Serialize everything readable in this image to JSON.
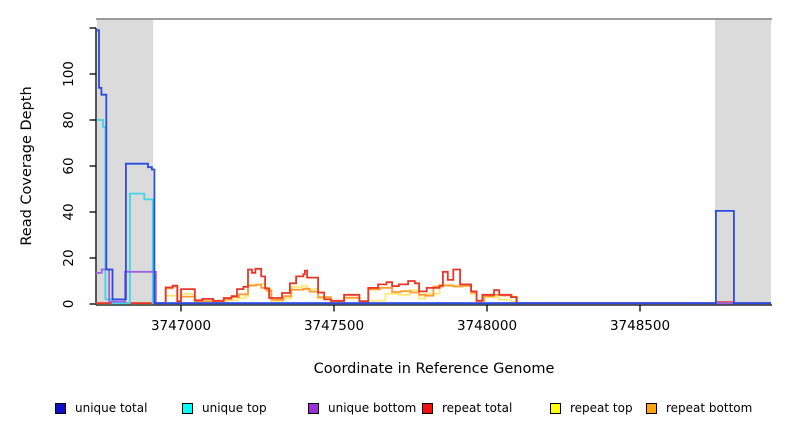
{
  "chart_data": {
    "type": "line",
    "step": true,
    "title": "",
    "xlabel": "Coordinate in Reference Genome",
    "ylabel": "Read Coverage Depth",
    "xlim": [
      3746722,
      3748928
    ],
    "ylim": [
      0,
      124
    ],
    "grid": false,
    "legend_position": "bottom",
    "x_ticks": [
      {
        "v": 3747000,
        "label": "3747000"
      },
      {
        "v": 3747500,
        "label": "3747500"
      },
      {
        "v": 3748000,
        "label": "3748000"
      },
      {
        "v": 3748500,
        "label": "3748500"
      }
    ],
    "y_ticks": [
      {
        "v": 0,
        "label": "0"
      },
      {
        "v": 20,
        "label": "20"
      },
      {
        "v": 40,
        "label": "40"
      },
      {
        "v": 60,
        "label": "60"
      },
      {
        "v": 80,
        "label": "80"
      },
      {
        "v": 100,
        "label": "100"
      },
      {
        "v": 120,
        "label": ""
      }
    ],
    "highlight_regions": [
      {
        "x0": 3746725,
        "x1": 3746909,
        "color": "#dbdbdb"
      },
      {
        "x0": 3748745,
        "x1": 3748928,
        "color": "#dbdbdb"
      }
    ],
    "frame": {
      "top_border_color": "#8f8f8f",
      "axis_color": "#000000"
    },
    "series": [
      {
        "name": "unique total",
        "color": "#2b4be0",
        "z": 6,
        "points": [
          [
            3746725,
            119
          ],
          [
            3746732,
            94
          ],
          [
            3746740,
            91
          ],
          [
            3746756,
            15
          ],
          [
            3746776,
            2
          ],
          [
            3746820,
            61
          ],
          [
            3746892,
            59.5
          ],
          [
            3746905,
            58.5
          ],
          [
            3746913,
            0.4
          ],
          [
            3748748,
            40.5
          ],
          [
            3748807,
            0.4
          ],
          [
            3748928,
            0.4
          ]
        ]
      },
      {
        "name": "unique top",
        "color": "#3fd6ea",
        "z": 4,
        "points": [
          [
            3746725,
            80
          ],
          [
            3746745,
            77
          ],
          [
            3746753,
            2
          ],
          [
            3746776,
            0.3
          ],
          [
            3746833,
            48
          ],
          [
            3746880,
            45.5
          ],
          [
            3746908,
            0.3
          ],
          [
            3748928,
            0.3
          ]
        ]
      },
      {
        "name": "unique bottom",
        "color": "#9c64e2",
        "z": 5,
        "points": [
          [
            3746722,
            13.5
          ],
          [
            3746741,
            15
          ],
          [
            3746765,
            1
          ],
          [
            3746817,
            14
          ],
          [
            3746918,
            0.3
          ],
          [
            3748928,
            0.3
          ]
        ]
      },
      {
        "name": "repeat total",
        "color": "#e8362b",
        "z": 3,
        "points": [
          [
            3746722,
            0.4
          ],
          [
            3746950,
            7.2
          ],
          [
            3746973,
            8
          ],
          [
            3746988,
            1.2
          ],
          [
            3747000,
            6.5
          ],
          [
            3747045,
            1.6
          ],
          [
            3747070,
            2.2
          ],
          [
            3747105,
            1.4
          ],
          [
            3747140,
            2.6
          ],
          [
            3747165,
            3.4
          ],
          [
            3747183,
            6.5
          ],
          [
            3747204,
            7.5
          ],
          [
            3747219,
            15
          ],
          [
            3747232,
            13.5
          ],
          [
            3747243,
            15.3
          ],
          [
            3747262,
            12
          ],
          [
            3747275,
            6.8
          ],
          [
            3747288,
            2.6
          ],
          [
            3747330,
            4.8
          ],
          [
            3747356,
            9
          ],
          [
            3747376,
            12
          ],
          [
            3747400,
            13
          ],
          [
            3747405,
            14.5
          ],
          [
            3747412,
            11.5
          ],
          [
            3747448,
            5
          ],
          [
            3747468,
            2
          ],
          [
            3747490,
            1.4
          ],
          [
            3747533,
            4
          ],
          [
            3747583,
            1.2
          ],
          [
            3747612,
            7
          ],
          [
            3747644,
            8.5
          ],
          [
            3747672,
            9.5
          ],
          [
            3747690,
            7.8
          ],
          [
            3747712,
            8.5
          ],
          [
            3747742,
            10
          ],
          [
            3747764,
            9
          ],
          [
            3747778,
            5.5
          ],
          [
            3747803,
            7
          ],
          [
            3747845,
            8
          ],
          [
            3747856,
            14
          ],
          [
            3747872,
            10.5
          ],
          [
            3747890,
            15
          ],
          [
            3747912,
            8.5
          ],
          [
            3747948,
            5.5
          ],
          [
            3747966,
            1.5
          ],
          [
            3747985,
            4
          ],
          [
            3748023,
            6
          ],
          [
            3748040,
            4
          ],
          [
            3748078,
            3
          ],
          [
            3748096,
            0.4
          ],
          [
            3748755,
            0.8
          ],
          [
            3748800,
            0.4
          ],
          [
            3748928,
            0.4
          ]
        ]
      },
      {
        "name": "repeat top",
        "color": "#ffe878",
        "z": 1,
        "points": [
          [
            3746722,
            0.3
          ],
          [
            3746950,
            3.5
          ],
          [
            3746988,
            0.8
          ],
          [
            3747000,
            4.4
          ],
          [
            3747045,
            0.8
          ],
          [
            3747105,
            0.6
          ],
          [
            3747150,
            1.6
          ],
          [
            3747185,
            2.6
          ],
          [
            3747210,
            3.4
          ],
          [
            3747219,
            8.3
          ],
          [
            3747262,
            8.8
          ],
          [
            3747275,
            6.4
          ],
          [
            3747295,
            1.4
          ],
          [
            3747335,
            2.4
          ],
          [
            3747360,
            7.4
          ],
          [
            3747395,
            7.9
          ],
          [
            3747412,
            6.4
          ],
          [
            3747448,
            2.4
          ],
          [
            3747490,
            0.7
          ],
          [
            3747533,
            2.4
          ],
          [
            3747583,
            0.5
          ],
          [
            3747625,
            1.5
          ],
          [
            3747668,
            4.4
          ],
          [
            3747712,
            4
          ],
          [
            3747748,
            6
          ],
          [
            3747778,
            2.4
          ],
          [
            3747798,
            4.4
          ],
          [
            3747845,
            8.4
          ],
          [
            3747890,
            7.9
          ],
          [
            3747948,
            4.4
          ],
          [
            3747966,
            0.7
          ],
          [
            3747990,
            2.9
          ],
          [
            3748040,
            1.9
          ],
          [
            3748078,
            0.9
          ],
          [
            3748096,
            0.3
          ],
          [
            3748928,
            0.3
          ]
        ]
      },
      {
        "name": "repeat bottom",
        "color": "#ff9c33",
        "z": 2,
        "points": [
          [
            3746722,
            0.4
          ],
          [
            3746950,
            6.8
          ],
          [
            3746973,
            7.6
          ],
          [
            3746988,
            1
          ],
          [
            3747000,
            3.2
          ],
          [
            3747045,
            1.2
          ],
          [
            3747105,
            1
          ],
          [
            3747140,
            2
          ],
          [
            3747165,
            3
          ],
          [
            3747190,
            4.2
          ],
          [
            3747219,
            8
          ],
          [
            3747245,
            8.4
          ],
          [
            3747262,
            7
          ],
          [
            3747280,
            5.8
          ],
          [
            3747295,
            1.8
          ],
          [
            3747335,
            3.4
          ],
          [
            3747360,
            6.2
          ],
          [
            3747400,
            6.6
          ],
          [
            3747420,
            5.4
          ],
          [
            3747448,
            3
          ],
          [
            3747490,
            1
          ],
          [
            3747533,
            2.8
          ],
          [
            3747583,
            0.9
          ],
          [
            3747612,
            6.4
          ],
          [
            3747650,
            7
          ],
          [
            3747690,
            5.2
          ],
          [
            3747720,
            5.6
          ],
          [
            3747750,
            5
          ],
          [
            3747778,
            4
          ],
          [
            3747798,
            3.6
          ],
          [
            3747825,
            7.6
          ],
          [
            3747856,
            8
          ],
          [
            3747890,
            7.6
          ],
          [
            3747920,
            7.9
          ],
          [
            3747948,
            5
          ],
          [
            3747966,
            1.2
          ],
          [
            3747990,
            3.4
          ],
          [
            3748023,
            4
          ],
          [
            3748045,
            3.7
          ],
          [
            3748082,
            3.1
          ],
          [
            3748098,
            0.4
          ],
          [
            3748928,
            0.4
          ]
        ]
      }
    ]
  },
  "legend": {
    "items": [
      {
        "label": "unique total",
        "color": "#0d0dcc"
      },
      {
        "label": "unique top",
        "color": "#00ffff"
      },
      {
        "label": "unique bottom",
        "color": "#9a30d8"
      },
      {
        "label": "repeat total",
        "color": "#f01010"
      },
      {
        "label": "repeat top",
        "color": "#ffff00"
      },
      {
        "label": "repeat bottom",
        "color": "#ffa510"
      }
    ]
  }
}
